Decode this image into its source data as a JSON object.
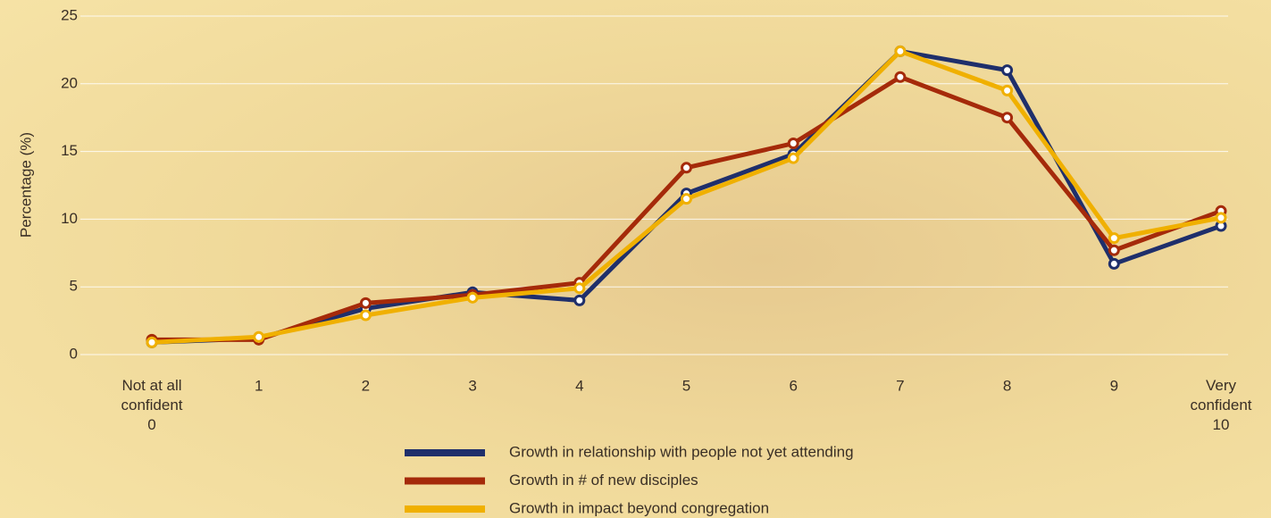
{
  "chart_data": {
    "type": "line",
    "y_label": "Percentage (%)",
    "categories": [
      "Not at all\nconfident\n0",
      "1",
      "2",
      "3",
      "4",
      "5",
      "6",
      "7",
      "8",
      "9",
      "Very\nconfident\n10"
    ],
    "series": [
      {
        "name": "Growth in relationship with people not yet attending",
        "color": "#1f2f6b",
        "values": [
          0.9,
          1.2,
          3.4,
          4.6,
          4.0,
          11.9,
          14.8,
          22.4,
          21.0,
          6.7,
          9.5
        ]
      },
      {
        "name": "Growth in # of new disciples",
        "color": "#a52a0a",
        "values": [
          1.1,
          1.1,
          3.8,
          4.4,
          5.3,
          13.8,
          15.6,
          20.5,
          17.5,
          7.7,
          10.6
        ]
      },
      {
        "name": "Growth in impact beyond congregation",
        "color": "#f0b000",
        "values": [
          0.9,
          1.3,
          2.9,
          4.2,
          4.9,
          11.5,
          14.5,
          22.4,
          19.5,
          8.6,
          10.1
        ]
      }
    ],
    "ylim": [
      0,
      25
    ],
    "yticks": [
      0,
      5,
      10,
      15,
      20,
      25
    ],
    "grid": true,
    "legend": "bottom"
  }
}
